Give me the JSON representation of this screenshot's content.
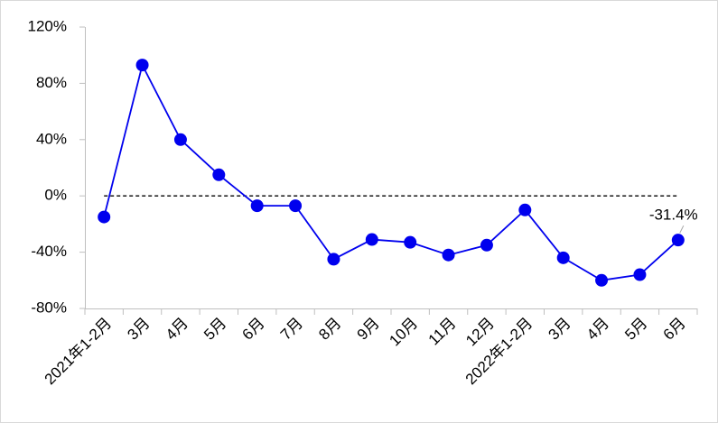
{
  "chart_data": {
    "type": "line",
    "categories": [
      "2021年1-2月",
      "3月",
      "4月",
      "5月",
      "6月",
      "7月",
      "8月",
      "9月",
      "10月",
      "11月",
      "12月",
      "2022年1-2月",
      "3月",
      "4月",
      "5月",
      "6月"
    ],
    "series": [
      {
        "color": "#0000ee",
        "values": [
          -15,
          93,
          40,
          15,
          -7,
          -7,
          -45,
          -31,
          -33,
          -42,
          -35,
          -10,
          -44,
          -60,
          -56,
          -31.4
        ],
        "value_labels": [
          null,
          null,
          null,
          null,
          null,
          null,
          null,
          null,
          null,
          null,
          null,
          null,
          null,
          null,
          null,
          "-31.4%"
        ]
      }
    ],
    "ylim": [
      -80,
      120
    ],
    "yticks": [
      {
        "value": -80,
        "label": "-80%"
      },
      {
        "value": -40,
        "label": "-40%"
      },
      {
        "value": 0,
        "label": "0%"
      },
      {
        "value": 40,
        "label": "40%"
      },
      {
        "value": 80,
        "label": "80%"
      },
      {
        "value": 120,
        "label": "120%"
      }
    ],
    "zero_line": true
  }
}
